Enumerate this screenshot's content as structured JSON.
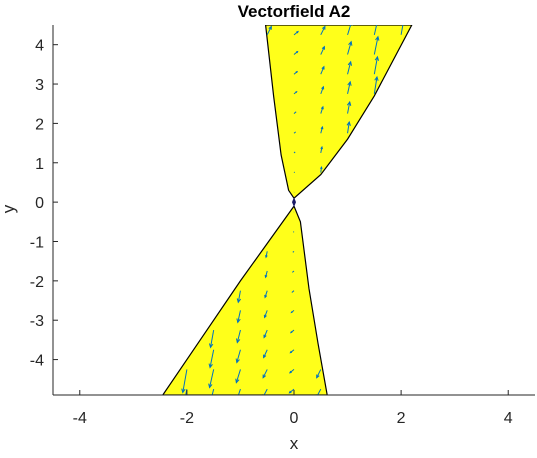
{
  "chart_data": {
    "type": "vector-field",
    "title": "Vectorfield A2",
    "xlabel": "x",
    "ylabel": "y",
    "xlim": [
      -4.5,
      4.5
    ],
    "ylim": [
      -4.9,
      4.5
    ],
    "xticks": [
      -4,
      -2,
      0,
      2,
      4
    ],
    "yticks": [
      -4,
      -3,
      -2,
      -1,
      0,
      1,
      2,
      3,
      4
    ],
    "grid": false,
    "box": "left-bottom",
    "region_color": "#ffff1a",
    "boundary_color": "#000000",
    "arrow_color": "#0072bd",
    "regions": [
      {
        "name": "upper",
        "polygon": [
          [
            -0.53,
            4.5
          ],
          [
            -0.38,
            2.7
          ],
          [
            -0.24,
            1.2
          ],
          [
            -0.1,
            0.3
          ],
          [
            0.0,
            0.1
          ],
          [
            0.5,
            0.7
          ],
          [
            1.0,
            1.6
          ],
          [
            1.5,
            2.7
          ],
          [
            2.2,
            4.5
          ]
        ]
      },
      {
        "name": "lower",
        "polygon": [
          [
            -2.45,
            -4.9
          ],
          [
            -1.8,
            -3.6
          ],
          [
            -1.0,
            -2.0
          ],
          [
            -0.5,
            -1.05
          ],
          [
            0.0,
            -0.1
          ],
          [
            0.12,
            -0.5
          ],
          [
            0.28,
            -2.2
          ],
          [
            0.45,
            -3.6
          ],
          [
            0.62,
            -4.9
          ]
        ]
      }
    ],
    "arrow_grid": {
      "x": [
        -2.5,
        -2.5,
        2.5
      ],
      "dx": 0.5,
      "dy": 0.5
    },
    "origin_marker": [
      0,
      0
    ]
  }
}
